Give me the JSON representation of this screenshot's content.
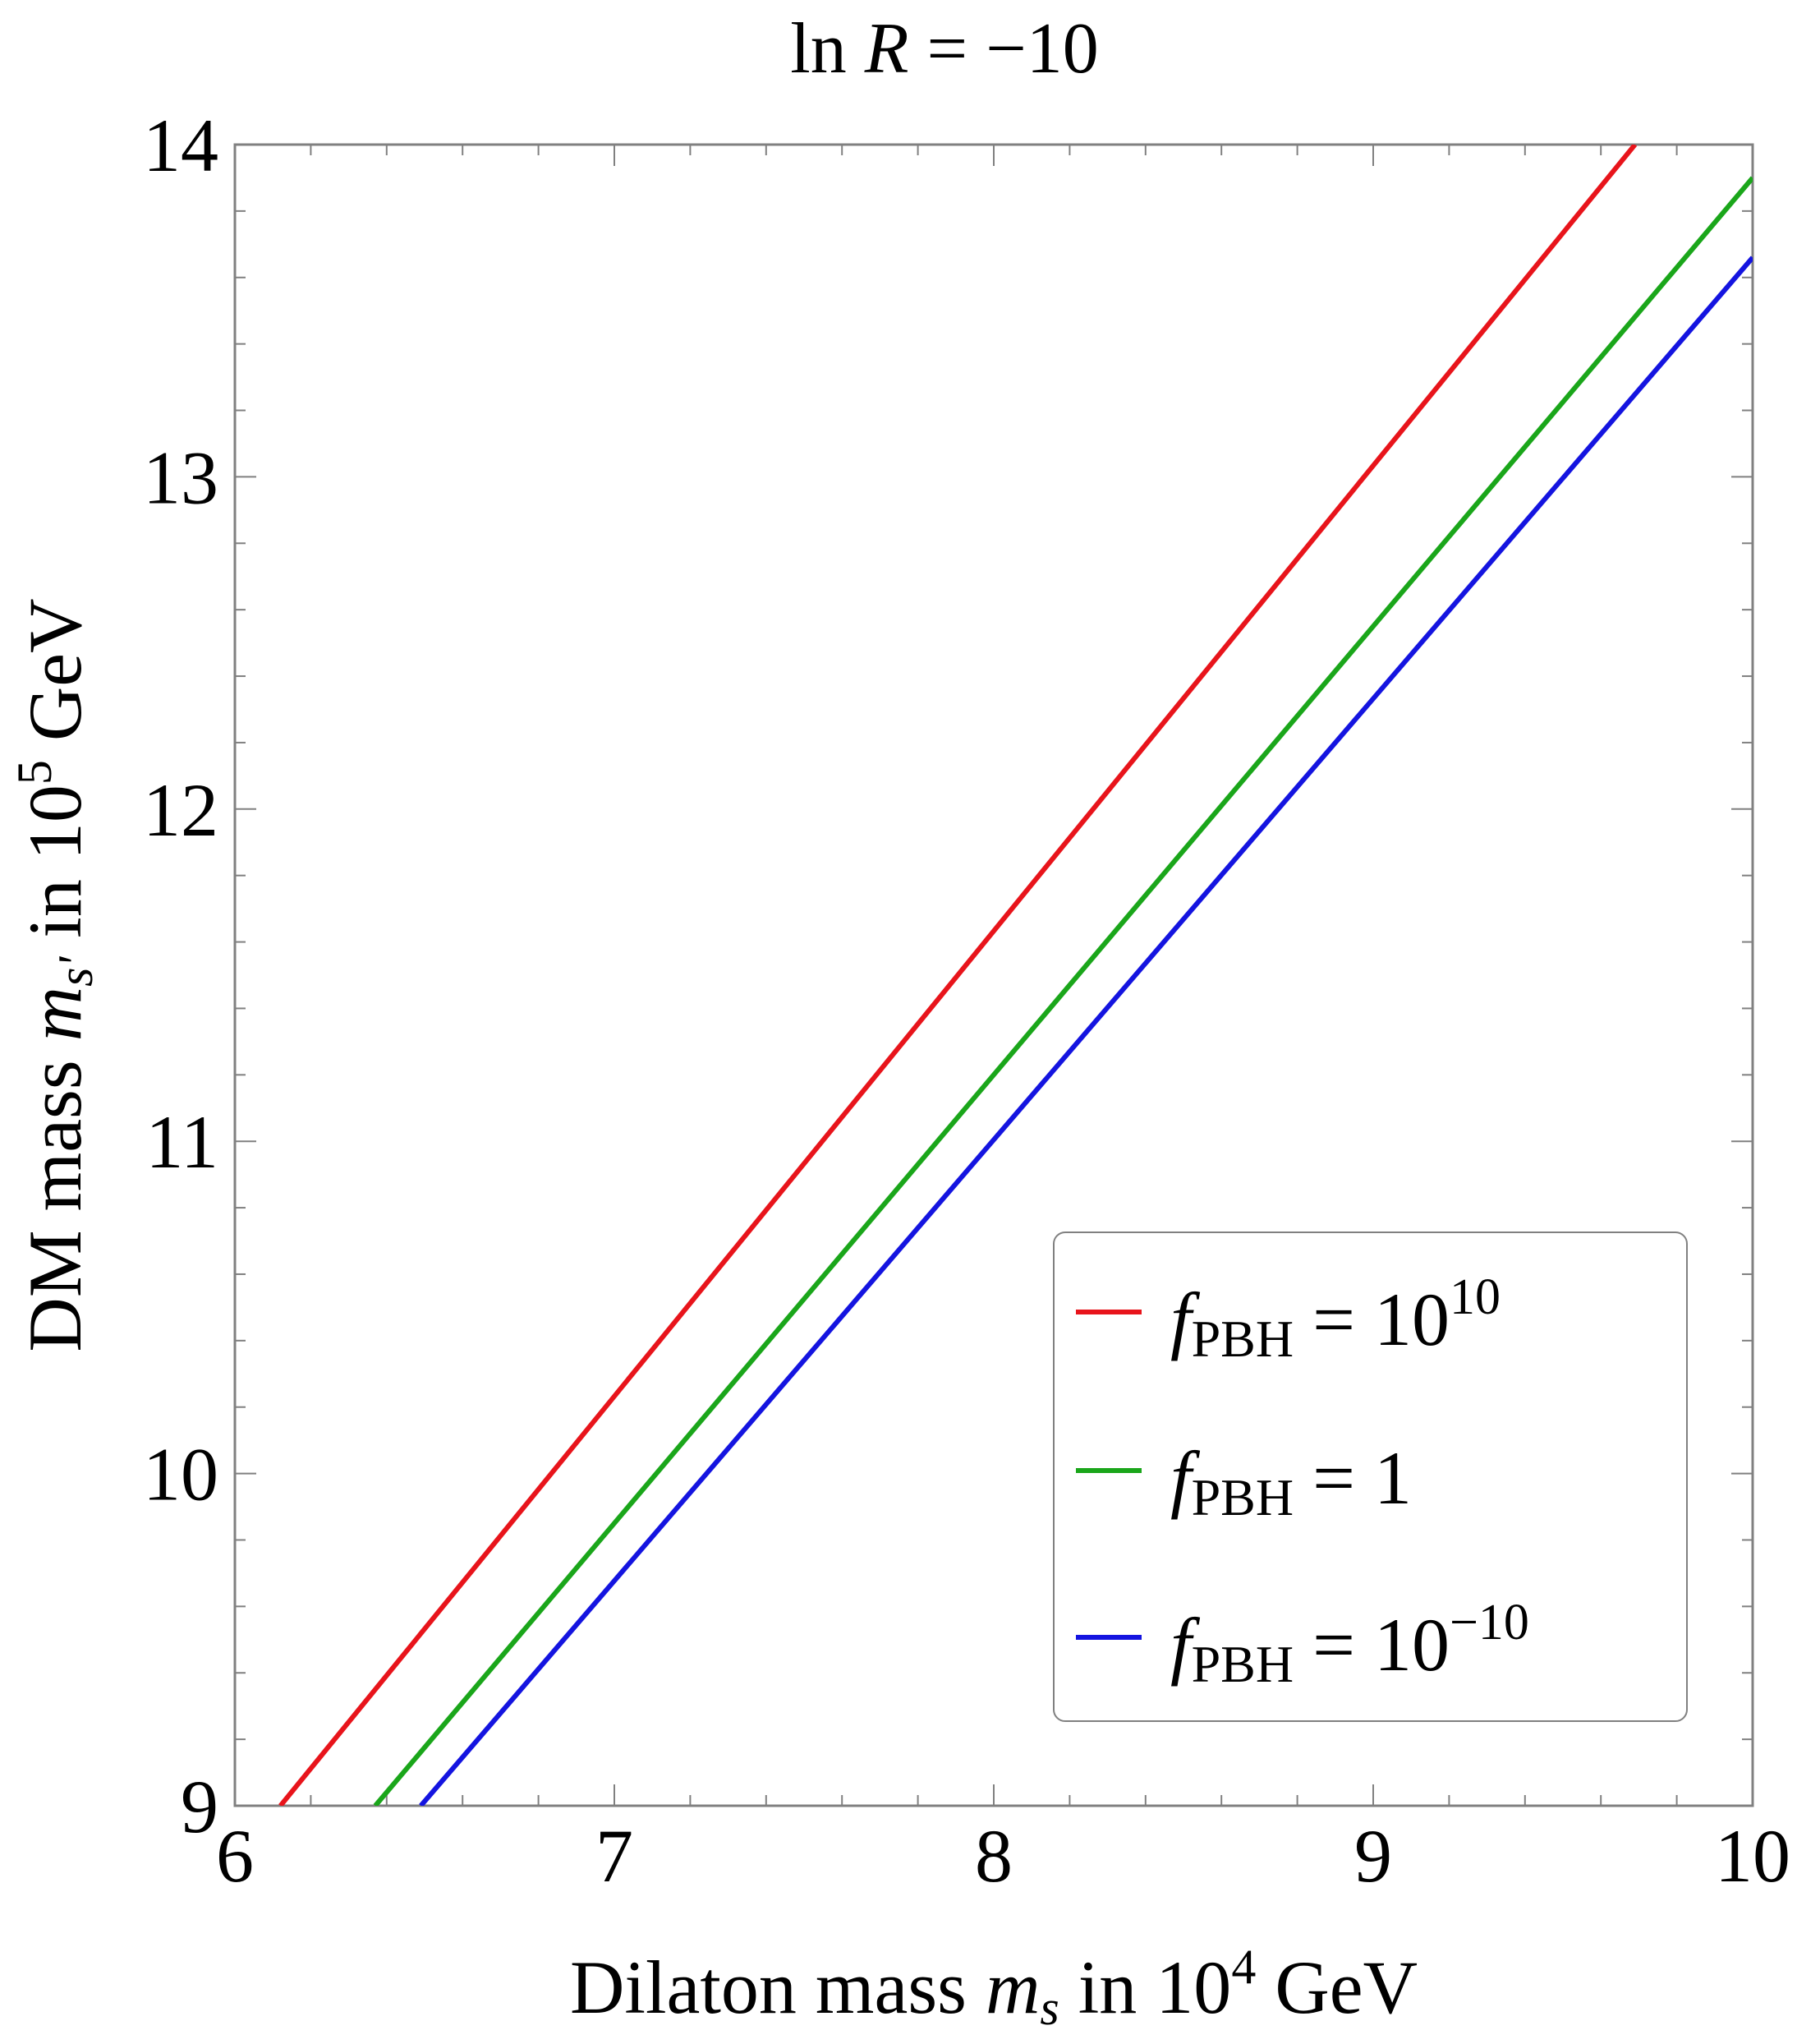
{
  "chart_data": {
    "type": "line",
    "title": {
      "prefix": "ln ",
      "var": "R",
      "suffix": " = −10"
    },
    "xlabel": {
      "text": "Dilaton mass ",
      "var": "m",
      "sub": "s",
      "mid": " in 10",
      "sup": "4",
      "unit": " GeV"
    },
    "ylabel": {
      "text": "DM mass ",
      "var": "m",
      "sub": "s'",
      "mid": " in 10",
      "sup": "5",
      "unit": " GeV"
    },
    "xlim": [
      6,
      10
    ],
    "ylim": [
      9,
      14
    ],
    "xticks": [
      "6",
      "7",
      "8",
      "9",
      "10"
    ],
    "yticks": [
      "9",
      "10",
      "11",
      "12",
      "13",
      "14"
    ],
    "grid": false,
    "legend_position": "lower-right",
    "series": [
      {
        "legend": {
          "var": "f",
          "sub": "PBH",
          "eq": " = 10",
          "sup": "10"
        },
        "color": "#e8141b",
        "x": [
          6.12,
          9.69
        ],
        "y": [
          9.0,
          14.0
        ]
      },
      {
        "legend": {
          "var": "f",
          "sub": "PBH",
          "eq": " = 1",
          "sup": ""
        },
        "color": "#1aa61a",
        "x": [
          6.37,
          10.0
        ],
        "y": [
          9.0,
          13.9
        ]
      },
      {
        "legend": {
          "var": "f",
          "sub": "PBH",
          "eq": " = 10",
          "sup": "−10"
        },
        "color": "#1414e0",
        "x": [
          6.49,
          10.0
        ],
        "y": [
          9.0,
          13.66
        ]
      }
    ]
  }
}
